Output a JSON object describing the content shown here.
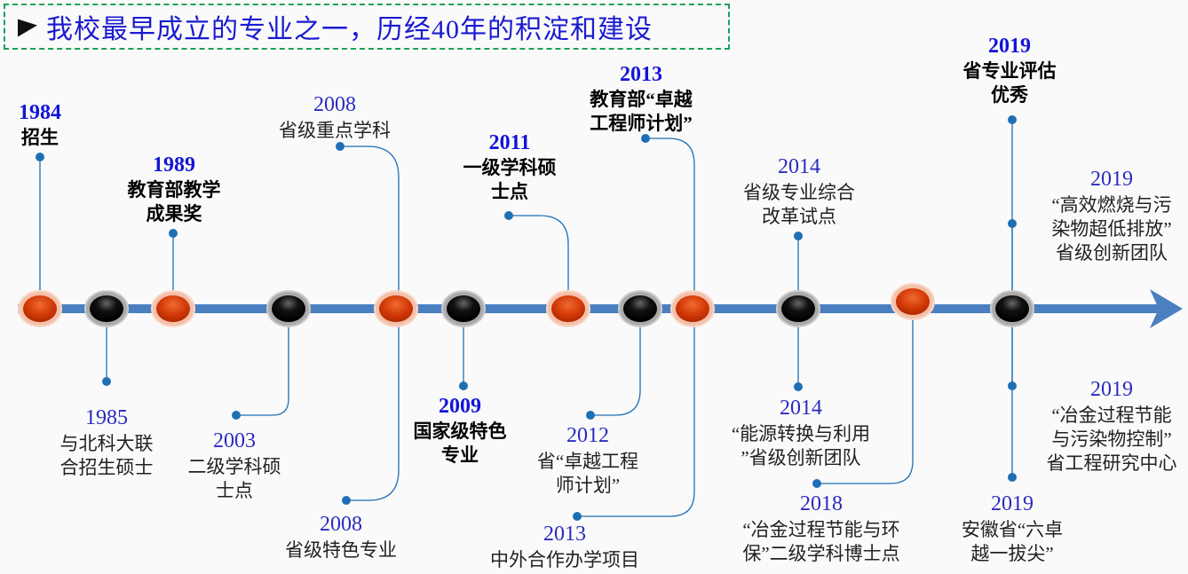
{
  "title": "我校最早成立的专业之一，历经40年的积淀和建设",
  "colors": {
    "title": "#1a1ad0",
    "axis": "#4a7fc0",
    "connector": "#1f6fb5",
    "node_red": "#d23a08",
    "node_black": "#111111"
  },
  "nodes": [
    "red",
    "black",
    "red",
    "black",
    "red",
    "black",
    "red",
    "black",
    "red",
    "black",
    "red",
    "black"
  ],
  "events": [
    {
      "year": "1984",
      "lines": [
        "招生"
      ],
      "emphasis": true
    },
    {
      "year": "1985",
      "lines": [
        "与北科大联",
        "合招生硕士"
      ],
      "emphasis": false
    },
    {
      "year": "1989",
      "lines": [
        "教育部教学",
        "成果奖"
      ],
      "emphasis": true
    },
    {
      "year": "2003",
      "lines": [
        "二级学科硕",
        "士点"
      ],
      "emphasis": false
    },
    {
      "year": "2008",
      "lines": [
        "省级重点学科"
      ],
      "emphasis": false
    },
    {
      "year": "2008",
      "lines": [
        "省级特色专业"
      ],
      "emphasis": false
    },
    {
      "year": "2009",
      "lines": [
        "国家级特色",
        "专业"
      ],
      "emphasis": true
    },
    {
      "year": "2011",
      "lines": [
        "一级学科硕",
        "士点"
      ],
      "emphasis": true
    },
    {
      "year": "2012",
      "lines": [
        "省“卓越工程",
        "师计划”"
      ],
      "emphasis": false
    },
    {
      "year": "2013",
      "lines": [
        "教育部“卓越",
        "工程师计划”"
      ],
      "emphasis": true
    },
    {
      "year": "2013",
      "lines": [
        "中外合作办学项目"
      ],
      "emphasis": false
    },
    {
      "year": "2014",
      "lines": [
        "省级专业综合",
        "改革试点"
      ],
      "emphasis": false
    },
    {
      "year": "2014",
      "lines": [
        "“能源转换与利用",
        "”省级创新团队"
      ],
      "emphasis": false
    },
    {
      "year": "2018",
      "lines": [
        "“冶金过程节能与环",
        "保”二级学科博士点"
      ],
      "emphasis": false
    },
    {
      "year": "2019",
      "lines": [
        "省专业评估",
        "优秀"
      ],
      "emphasis": true
    },
    {
      "year": "2019",
      "lines": [
        "“高效燃烧与污",
        "染物超低排放”",
        "省级创新团队"
      ],
      "emphasis": false
    },
    {
      "year": "2019",
      "lines": [
        "“冶金过程节能",
        "与污染物控制”",
        "省工程研究中心"
      ],
      "emphasis": false
    },
    {
      "year": "2019",
      "lines": [
        "安徽省“六卓",
        "越一拔尖”"
      ],
      "emphasis": false
    }
  ]
}
